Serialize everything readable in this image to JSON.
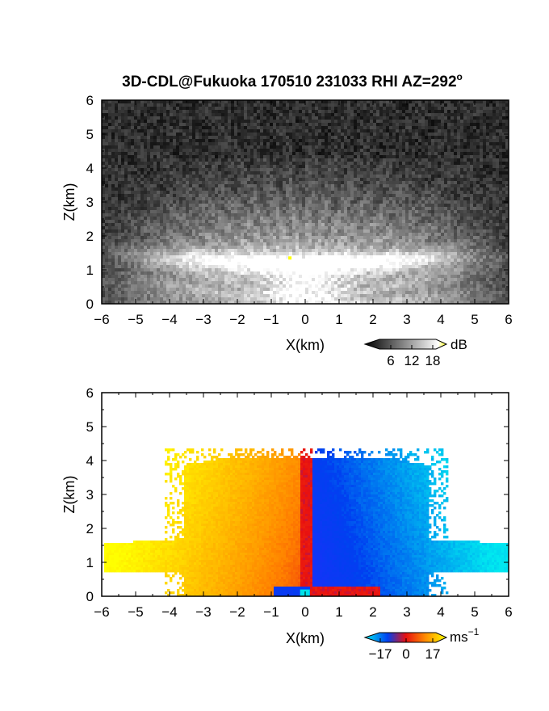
{
  "chart_data": [
    {
      "type": "heatmap",
      "title": "3D-CDL@Fukuoka 170510 231033 RHI AZ=292",
      "title_superscript": "o",
      "xlabel": "X(km)",
      "ylabel": "Z(km)",
      "xlim": [
        -6,
        6
      ],
      "ylim": [
        0,
        6
      ],
      "x_ticks": [
        "-6",
        "-5",
        "-4",
        "-3",
        "-2",
        "-1",
        "0",
        "1",
        "2",
        "3",
        "4",
        "5",
        "6"
      ],
      "y_ticks": [
        "0",
        "1",
        "2",
        "3",
        "4",
        "5",
        "6"
      ],
      "colormap": "grayscale",
      "colorbar": {
        "label": "dB",
        "ticks": [
          "6",
          "12",
          "18"
        ],
        "range": [
          0,
          21
        ]
      },
      "colors": {
        "low": "#000000",
        "high": "#ffffff",
        "extreme": "#ffff00"
      },
      "grid": false
    },
    {
      "type": "heatmap",
      "xlabel": "X(km)",
      "ylabel": "Z(km)",
      "xlim": [
        -6,
        6
      ],
      "ylim": [
        0,
        6
      ],
      "x_ticks": [
        "-6",
        "-5",
        "-4",
        "-3",
        "-2",
        "-1",
        "0",
        "1",
        "2",
        "3",
        "4",
        "5",
        "6"
      ],
      "y_ticks": [
        "0",
        "1",
        "2",
        "3",
        "4",
        "5",
        "6"
      ],
      "colormap": "doppler velocity (cyan-blue-red-yellow)",
      "colorbar": {
        "label": "ms",
        "label_superscript": "−1",
        "ticks": [
          "−17",
          "0",
          "17"
        ],
        "range": [
          -25,
          25
        ]
      },
      "colors": {
        "negative": "#0050f0",
        "near_zero": "#e81010",
        "positive": "#ffee00",
        "min": "#00e8f0"
      },
      "grid": false
    }
  ]
}
